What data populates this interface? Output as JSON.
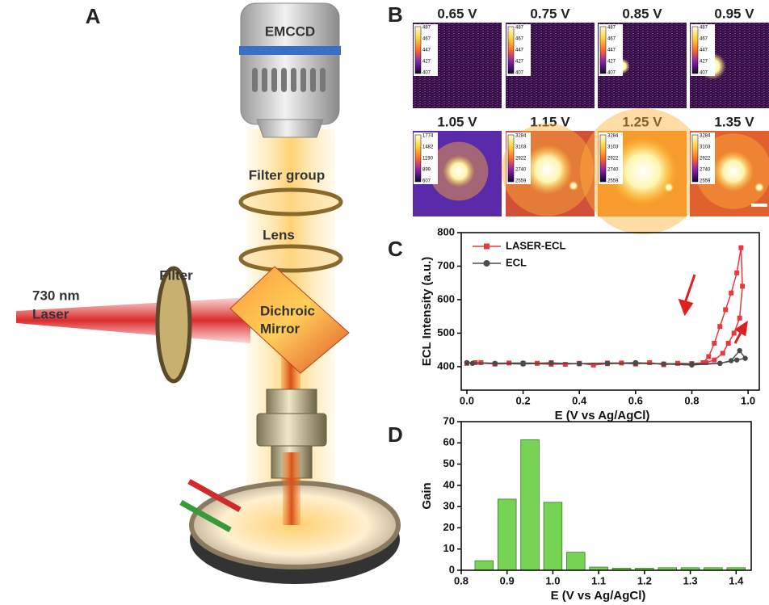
{
  "panels": {
    "a": "A",
    "b": "B",
    "c": "C",
    "d": "D"
  },
  "diagram": {
    "camera": "EMCCD",
    "filter_group": "Filter group",
    "lens": "Lens",
    "filter": "Filter",
    "laser": [
      "730 nm",
      "Laser"
    ],
    "mirror": [
      "Dichroic",
      "Mirror"
    ]
  },
  "images": [
    {
      "voltage": "0.65 V",
      "colorbar": [
        487,
        467,
        447,
        427,
        407
      ]
    },
    {
      "voltage": "0.75 V",
      "colorbar": [
        487,
        467,
        447,
        427,
        407
      ]
    },
    {
      "voltage": "0.85 V",
      "colorbar": [
        487,
        467,
        447,
        427,
        407
      ]
    },
    {
      "voltage": "0.95 V",
      "colorbar": [
        487,
        467,
        447,
        427,
        407
      ]
    },
    {
      "voltage": "1.05 V",
      "colorbar": [
        1774,
        1482,
        1190,
        899,
        607
      ]
    },
    {
      "voltage": "1.15 V",
      "colorbar": [
        3284,
        3103,
        2922,
        2740,
        2559
      ]
    },
    {
      "voltage": "1.25 V",
      "colorbar": [
        3284,
        3103,
        2922,
        2740,
        2559
      ]
    },
    {
      "voltage": "1.35 V",
      "colorbar": [
        3284,
        3103,
        2922,
        2740,
        2559
      ]
    }
  ],
  "chart_data": [
    {
      "type": "line",
      "x_label": "E (V vs Ag/AgCl)",
      "y_label": "ECL Intensity (a.u.)",
      "xlim": [
        -0.02,
        1.04
      ],
      "ylim": [
        330,
        800
      ],
      "xticks": [
        {
          "value": 0,
          "label": "0.0"
        },
        0.2,
        0.4,
        0.6,
        0.8,
        {
          "value": 1,
          "label": "1.0"
        }
      ],
      "yticks": [
        400,
        500,
        600,
        700,
        800
      ],
      "series": [
        {
          "name": "LASER-ECL",
          "color": "#e8383d",
          "marker": "square",
          "x": [
            0,
            0.05,
            0.1,
            0.15,
            0.2,
            0.25,
            0.3,
            0.35,
            0.4,
            0.45,
            0.5,
            0.55,
            0.6,
            0.65,
            0.7,
            0.75,
            0.8,
            0.85,
            0.88,
            0.91,
            0.93,
            0.95,
            0.97,
            0.98,
            0.975,
            0.96,
            0.94,
            0.92,
            0.9,
            0.88,
            0.86,
            0.84,
            0.8,
            0.7,
            0.6,
            0.5,
            0.4,
            0.3,
            0.2,
            0.1,
            0.03
          ],
          "values": [
            410,
            412,
            408,
            411,
            409,
            410,
            412,
            407,
            410,
            405,
            409,
            411,
            408,
            412,
            406,
            410,
            409,
            412,
            420,
            440,
            470,
            500,
            545,
            640,
            755,
            680,
            620,
            570,
            520,
            470,
            430,
            412,
            409,
            408,
            410,
            411,
            409,
            407,
            410,
            408,
            412
          ]
        },
        {
          "name": "ECL",
          "color": "#4a4a4a",
          "marker": "circle",
          "x": [
            0,
            0.1,
            0.2,
            0.3,
            0.4,
            0.5,
            0.6,
            0.7,
            0.8,
            0.9,
            0.94,
            0.97,
            0.99,
            0.96,
            0.9,
            0.8,
            0.6,
            0.4,
            0.2,
            0.02
          ],
          "values": [
            412,
            410,
            408,
            411,
            409,
            410,
            412,
            408,
            405,
            410,
            418,
            448,
            425,
            420,
            410,
            408,
            410,
            409,
            411,
            410
          ]
        }
      ]
    },
    {
      "type": "bar",
      "x_label": "E (V vs Ag/AgCl)",
      "y_label": "Gain",
      "color": "#77d353",
      "xlim": [
        0.8,
        1.433
      ],
      "ylim": [
        0,
        70
      ],
      "xticks": [
        0.8,
        0.9,
        {
          "value": 1,
          "label": "1.0"
        },
        1.1,
        1.2,
        1.3,
        1.4
      ],
      "yticks": [
        0,
        10,
        20,
        30,
        40,
        50,
        60,
        70
      ],
      "x": [
        0.85,
        0.9,
        0.95,
        1.0,
        1.05,
        1.1,
        1.15,
        1.2,
        1.25,
        1.3,
        1.35,
        1.4
      ],
      "values": [
        4.5,
        33.5,
        61.5,
        32,
        8.5,
        1.5,
        1,
        1,
        1.2,
        1.2,
        1.2,
        1.2
      ]
    }
  ]
}
